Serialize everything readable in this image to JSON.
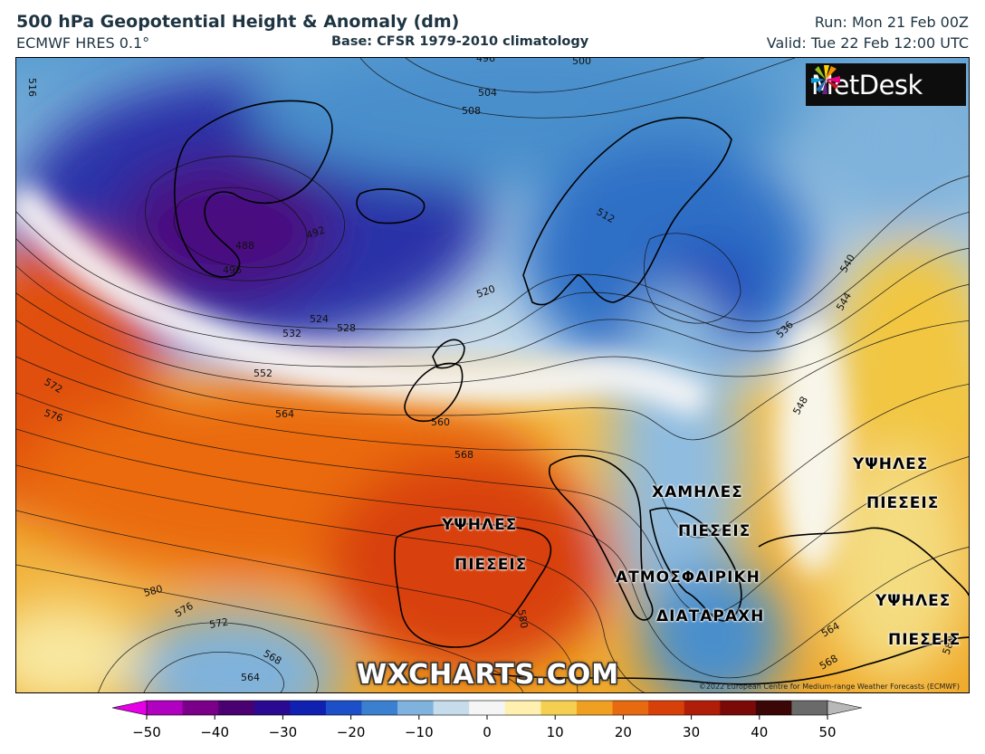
{
  "header": {
    "title": "500 hPa Geopotential Height & Anomaly (dm)",
    "model": "ECMWF HRES 0.1°",
    "base": "Base: CFSR 1979-2010 climatology",
    "run": "Run: Mon 21 Feb 00Z",
    "valid": "Valid: Tue 22 Feb 12:00 UTC"
  },
  "logo": {
    "text": "MetDesk"
  },
  "watermark": "WXCHARTS.COM",
  "copyright": "©2022 European Centre for Medium-range Weather Forecasts (ECMWF)",
  "annotations": [
    {
      "name": "high-pressure-iberia-line1",
      "text": "ΥΨΗΛΕΣ"
    },
    {
      "name": "high-pressure-iberia-line2",
      "text": "ΠΙΕΣΕΙΣ"
    },
    {
      "name": "low-pressure-balkans-line1",
      "text": "ΧΑΜΗΛΕΣ"
    },
    {
      "name": "low-pressure-balkans-line2",
      "text": "ΠΙΕΣΕΙΣ"
    },
    {
      "name": "disturbance-line1",
      "text": "ΑΤΜΟΣΦΑΙΡΙΚΗ"
    },
    {
      "name": "disturbance-line2",
      "text": "ΔΙΑΤΑΡΑΧΗ"
    },
    {
      "name": "high-pressure-east-line1",
      "text": "ΥΨΗΛΕΣ"
    },
    {
      "name": "high-pressure-east-line2",
      "text": "ΠΙΕΣΕΙΣ"
    },
    {
      "name": "high-pressure-southeast-line1",
      "text": "ΥΨΗΛΕΣ"
    },
    {
      "name": "high-pressure-southeast-line2",
      "text": "ΠΙΕΣΕΙΣ"
    }
  ],
  "contour_labels": [
    "516",
    "496",
    "500",
    "504",
    "508",
    "488",
    "492",
    "496",
    "512",
    "520",
    "524",
    "528",
    "532",
    "540",
    "544",
    "552",
    "536",
    "572",
    "576",
    "564",
    "560",
    "568",
    "548",
    "580",
    "576",
    "572",
    "568",
    "564",
    "580",
    "564",
    "568",
    "580"
  ],
  "colorbar": {
    "ticks": [
      "−50",
      "−40",
      "−30",
      "−20",
      "−10",
      "0",
      "10",
      "20",
      "30",
      "40",
      "50"
    ],
    "colors": [
      "#e600e6",
      "#b000c0",
      "#7a008a",
      "#4a0070",
      "#2a0a90",
      "#1020b0",
      "#1c4fc8",
      "#3a7fd0",
      "#7fb2dc",
      "#c6dcea",
      "#f5f5f5",
      "#fff0b0",
      "#f5d050",
      "#f0a020",
      "#e86a10",
      "#d8400a",
      "#b01e0a",
      "#7a0a08",
      "#3a0606",
      "#6a6a6a",
      "#b8b8b8"
    ]
  }
}
